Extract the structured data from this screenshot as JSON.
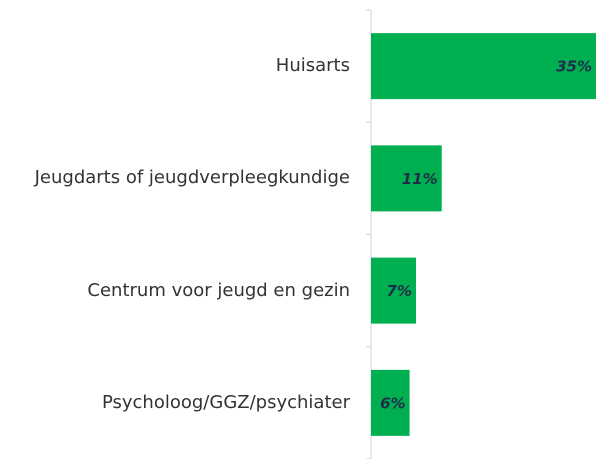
{
  "chart_data": {
    "type": "bar",
    "orientation": "horizontal",
    "categories": [
      "Huisarts",
      "Jeugdarts of jeugdverpleegkundige",
      "Centrum voor jeugd en gezin",
      "Psycholoog/GGZ/psychiater"
    ],
    "values": [
      35,
      11,
      7,
      6
    ],
    "value_labels": [
      "35%",
      "11%",
      "7%",
      "6%"
    ],
    "color": "#00b050",
    "xlim": [
      0,
      35
    ]
  }
}
